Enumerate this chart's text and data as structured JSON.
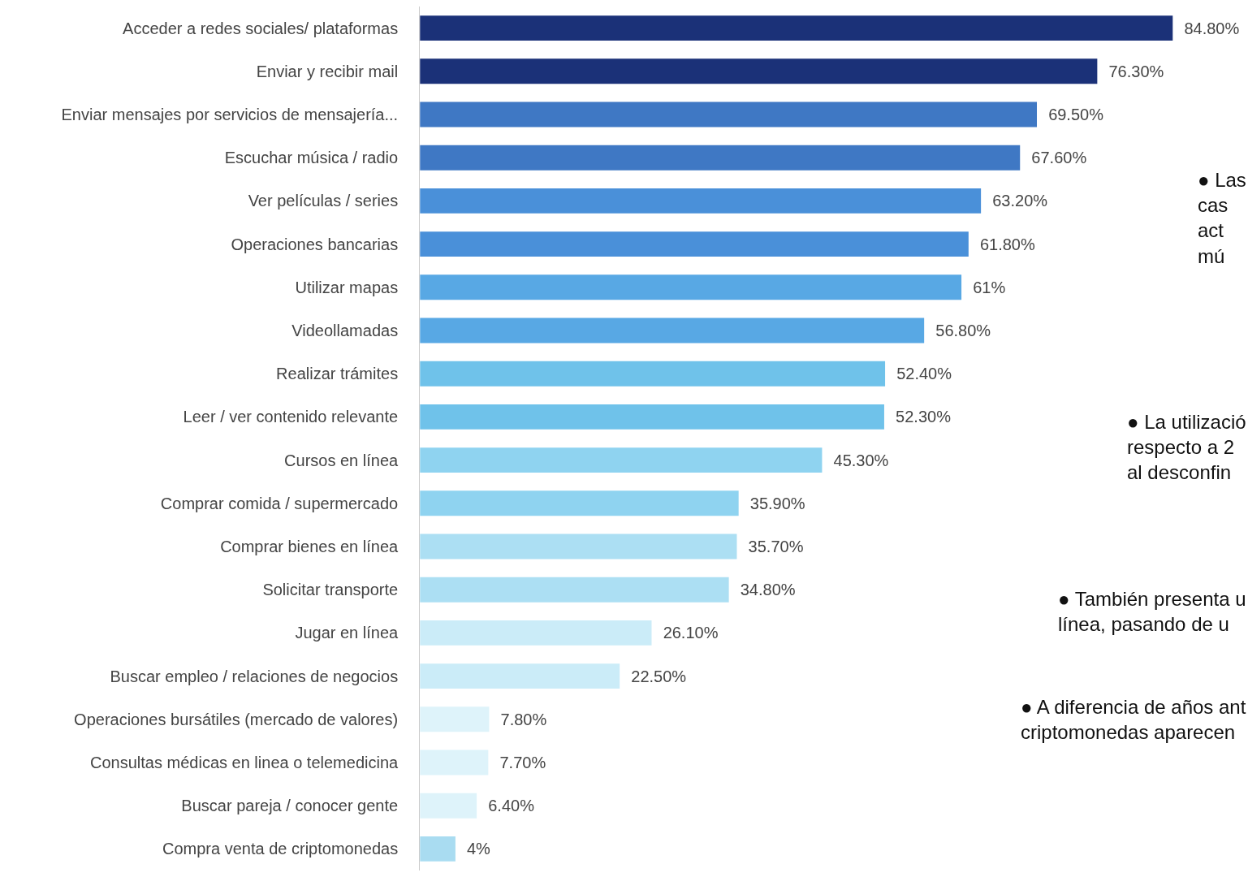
{
  "chart_data": {
    "type": "bar",
    "orientation": "horizontal",
    "categories": [
      "Acceder a redes sociales/ plataformas",
      "Enviar y recibir mail",
      "Enviar mensajes por servicios de mensajería...",
      "Escuchar música / radio",
      "Ver películas / series",
      "Operaciones bancarias",
      "Utilizar mapas",
      "Videollamadas",
      "Realizar trámites",
      "Leer / ver contenido relevante",
      "Cursos en línea",
      "Comprar comida / supermercado",
      "Comprar bienes en línea",
      "Solicitar transporte",
      "Jugar en línea",
      "Buscar empleo / relaciones de negocios",
      "Operaciones bursátiles (mercado de valores)",
      "Consultas médicas en linea o telemedicina",
      "Buscar pareja / conocer gente",
      "Compra venta de criptomonedas"
    ],
    "values": [
      84.8,
      76.3,
      69.5,
      67.6,
      63.2,
      61.8,
      61,
      56.8,
      52.4,
      52.3,
      45.3,
      35.9,
      35.7,
      34.8,
      26.1,
      22.5,
      7.8,
      7.7,
      6.4,
      4
    ],
    "value_labels": [
      "84.80%",
      "76.30%",
      "69.50%",
      "67.60%",
      "63.20%",
      "61.80%",
      "61%",
      "56.80%",
      "52.40%",
      "52.30%",
      "45.30%",
      "35.90%",
      "35.70%",
      "34.80%",
      "26.10%",
      "22.50%",
      "7.80%",
      "7.70%",
      "6.40%",
      "4%"
    ],
    "colors": [
      "#1b3178",
      "#1b3178",
      "#3f78c4",
      "#3f78c4",
      "#4a90d9",
      "#4a90d9",
      "#58a8e4",
      "#58a8e4",
      "#6fc2ea",
      "#6fc2ea",
      "#8fd3f0",
      "#8fd3f0",
      "#acdff3",
      "#acdff3",
      "#cbecf8",
      "#cbecf8",
      "#def3fa",
      "#def3fa",
      "#def3fa",
      "#a9dcf1"
    ],
    "annotations": [
      "● Las\ncas\nact\nmú",
      "● La utilizació\nrespecto a 2\nal desconfin",
      "● También presenta u\nlínea, pasando de u",
      "● A diferencia de años ant\ncriptomonedas aparecen"
    ],
    "legend": false
  }
}
